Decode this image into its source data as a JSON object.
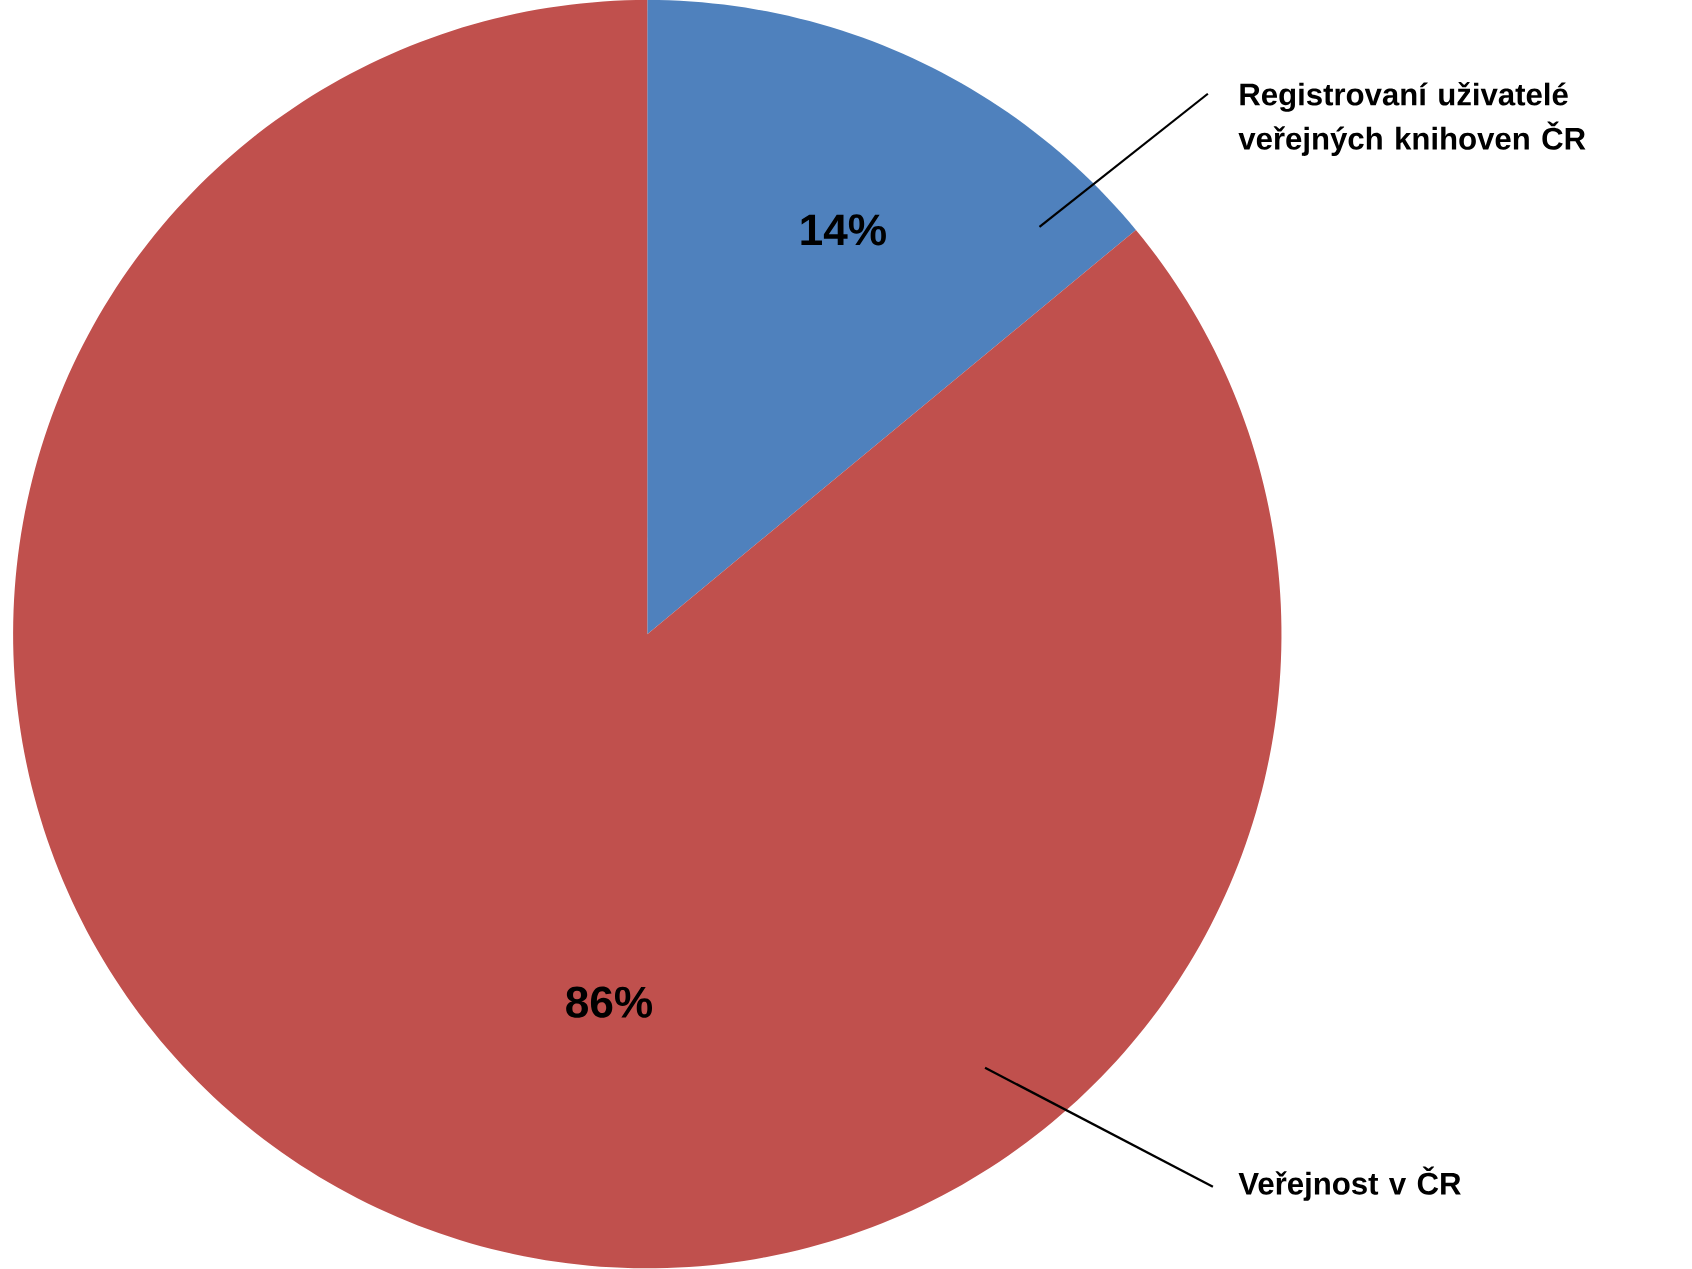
{
  "chart_data": {
    "type": "pie",
    "categories": [
      "Registrovaní uživatelé veřejných knihoven ČR",
      "Veřejnost v ČR"
    ],
    "values": [
      14,
      86
    ],
    "colors": [
      "#4f81bd",
      "#c0504d"
    ],
    "value_labels": [
      "14%",
      "86%"
    ]
  }
}
